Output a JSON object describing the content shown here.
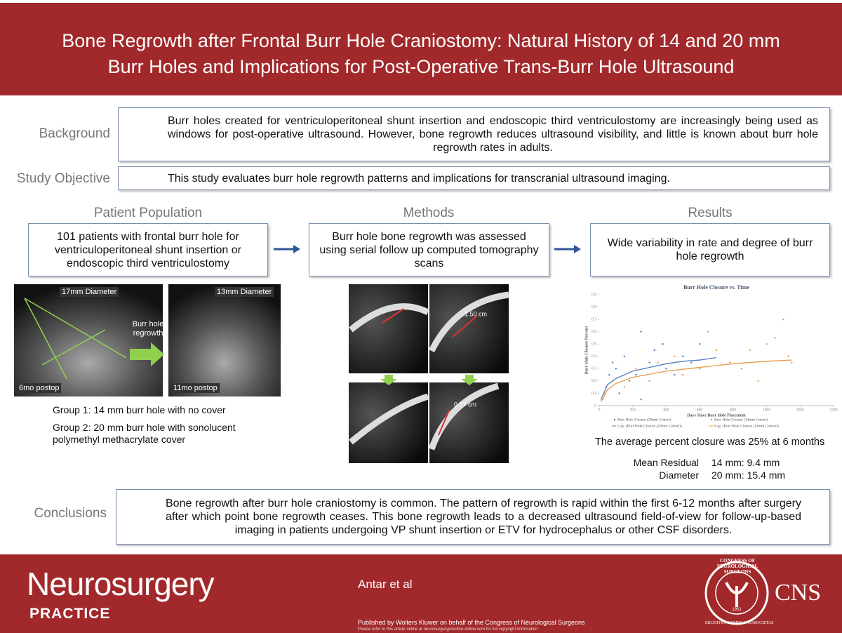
{
  "header": {
    "title_lines": [
      "Bone Regrowth after Frontal Burr Hole Craniostomy: Natural History of 14 and 20 mm",
      "Burr Holes and Implications for Post-Operative Trans-Burr Hole Ultrasound"
    ]
  },
  "background": {
    "label": "Background",
    "text": "Burr holes created for ventriculoperitoneal shunt insertion and endoscopic third ventriculostomy are increasingly being used as windows for post-operative ultrasound. However, bone regrowth reduces ultrasound visibility, and little is known about burr hole regrowth rates in adults."
  },
  "objective": {
    "label": "Study Objective",
    "text": "This study evaluates burr hole regrowth patterns and implications for transcranial ultrasound imaging."
  },
  "population": {
    "heading": "Patient Population",
    "text": "101 patients with frontal burr hole for ventriculoperitoneal shunt insertion or endoscopic third ventriculostomy"
  },
  "methods": {
    "heading": "Methods",
    "text": "Burr hole bone regrowth was assessed using serial follow up computed tomography scans"
  },
  "results": {
    "heading": "Results",
    "text": "Wide variability in rate and degree of burr hole regrowth"
  },
  "ultrasound": {
    "before_label": "17mm Diameter",
    "after_label": "13mm Diameter",
    "before_time": "6mo postop",
    "after_time": "11mo postop",
    "arrow_label": "Burr hole regrowth"
  },
  "groups": [
    "Group 1: 14 mm burr hole with no cover",
    "Group 2: 20 mm burr hole with sonolucent polymethyl methacrylate cover"
  ],
  "ct": {
    "labels": [
      "1.50 cm",
      "0.77 cm"
    ]
  },
  "results_chart": {
    "type": "scatter",
    "title": "Burr Hole Closure vs. Time",
    "x_label": "Days Since Burr Hole Placement",
    "y_label": "Burr Hole Closure Percent",
    "xlim": [
      0,
      1400
    ],
    "xticks": [
      0,
      200,
      400,
      600,
      800,
      1000,
      1200,
      1400
    ],
    "ylim": [
      0,
      0.9
    ],
    "yticks": [
      0,
      0.1,
      0.2,
      0.3,
      0.4,
      0.5,
      0.6,
      0.7,
      0.8,
      0.9
    ],
    "series": [
      {
        "name": "Burr Hole Closure (20mm Cohort)",
        "kind": "points",
        "color": "#4f7fc4",
        "x": [
          20,
          40,
          60,
          80,
          100,
          120,
          150,
          180,
          220,
          250,
          300,
          330,
          380,
          400,
          450,
          500,
          550,
          600,
          700,
          250
        ],
        "values": [
          0.05,
          0.15,
          0.25,
          0.35,
          0.3,
          0.1,
          0.4,
          0.2,
          0.25,
          0.6,
          0.35,
          0.45,
          0.5,
          0.3,
          0.25,
          0.4,
          0.35,
          0.5,
          0.45,
          0.05
        ]
      },
      {
        "name": "Burr Hole Closure (14mm Cohort)",
        "kind": "points",
        "color": "#e8994a",
        "x": [
          30,
          80,
          150,
          220,
          300,
          350,
          450,
          500,
          600,
          650,
          700,
          780,
          850,
          900,
          950,
          1000,
          1050,
          1100,
          1130,
          1150
        ],
        "values": [
          0.1,
          0.2,
          0.15,
          0.3,
          0.2,
          0.35,
          0.4,
          0.25,
          0.3,
          0.6,
          0.45,
          0.35,
          0.3,
          0.45,
          0.2,
          0.5,
          0.55,
          0.7,
          0.4,
          0.35
        ]
      },
      {
        "name": "Log. (Burr Hole Closure (20mm Cohort))",
        "kind": "line",
        "color": "#4f7fc4",
        "x": [
          10,
          50,
          100,
          200,
          300,
          400,
          500,
          600,
          700
        ],
        "values": [
          0.05,
          0.17,
          0.22,
          0.28,
          0.31,
          0.34,
          0.36,
          0.37,
          0.39
        ]
      },
      {
        "name": "Log. (Burr Hole Closure (14mm Cohort))",
        "kind": "line",
        "color": "#e8994a",
        "x": [
          10,
          50,
          100,
          200,
          400,
          600,
          800,
          1000,
          1150
        ],
        "values": [
          0.03,
          0.13,
          0.18,
          0.23,
          0.28,
          0.31,
          0.34,
          0.36,
          0.37
        ]
      }
    ]
  },
  "summary": "The average percent closure was 25% at 6 months",
  "residual": {
    "label_lines": [
      "Mean Residual",
      "Diameter"
    ],
    "values": [
      "14 mm: 9.4 mm",
      "20 mm: 15.4 mm"
    ]
  },
  "conclusions": {
    "label": "Conclusions",
    "text": "Bone regrowth after burr hole craniostomy is common. The pattern of regrowth is rapid within the first 6-12 months after surgery after which point bone regrowth ceases. This bone regrowth leads to a decreased ultrasound field-of-view for follow-up-based imaging in patients undergoing VP shunt insertion or ETV for hydrocephalus or other CSF disorders."
  },
  "footer": {
    "brand": "Neurosurgery",
    "sub": "PRACTICE",
    "authors": "Antar et al",
    "published": "Published by Wolters Kluwer on behalf of the Congress of Neurological Surgeons",
    "note": "Please refer to this article online at neurosurgerypractice-online.com for full copyright information",
    "logo_ring": "CONGRESS OF NEUROLOGICAL SURGEONS",
    "logo_year": "1951",
    "logo_motto": [
      "ERUDITIO",
      "OBSERVANTIA",
      "SOCIETAS"
    ],
    "cns": "CNS"
  }
}
